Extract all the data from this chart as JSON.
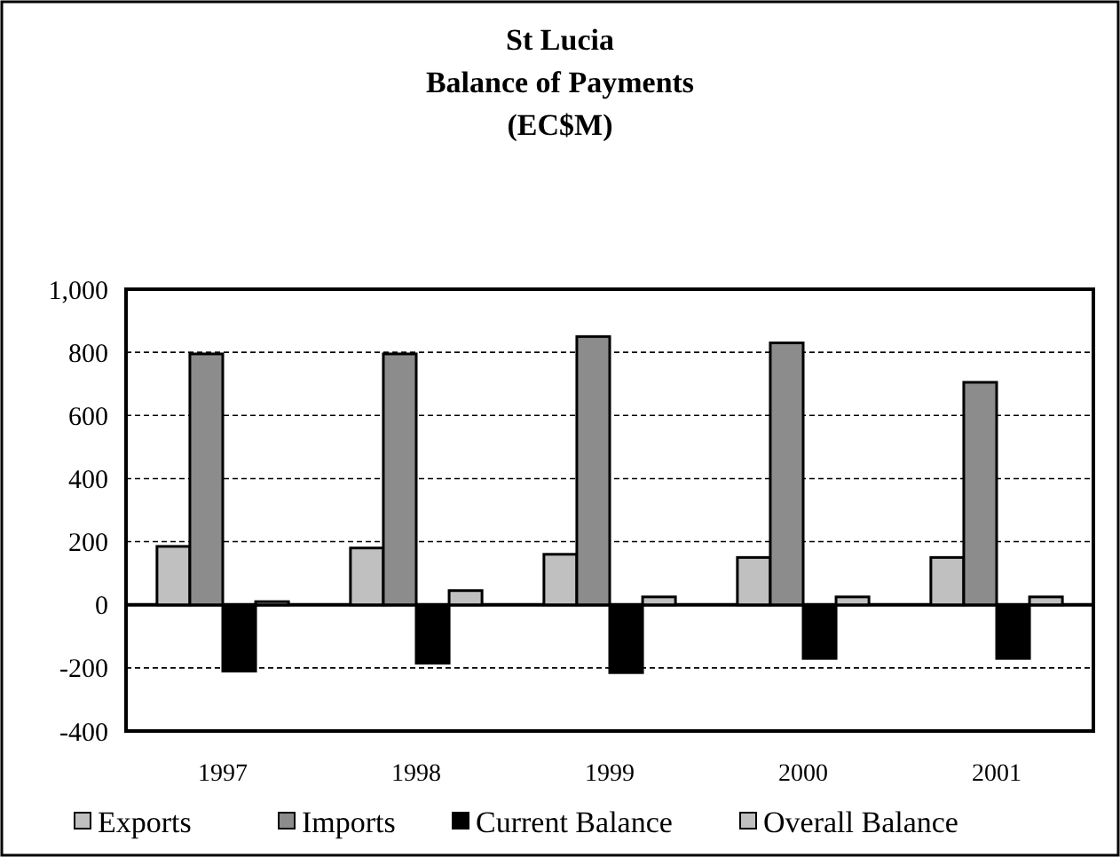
{
  "chart_data": {
    "type": "bar",
    "title": "St Lucia\nBalance of Payments\n(EC$M)",
    "categories": [
      "1997",
      "1998",
      "1999",
      "2000",
      "2001"
    ],
    "series": [
      {
        "name": "Exports",
        "color": "#c0c0c0",
        "values": [
          185,
          180,
          160,
          150,
          150
        ]
      },
      {
        "name": "Imports",
        "color": "#8c8c8c",
        "values": [
          795,
          795,
          850,
          830,
          705
        ]
      },
      {
        "name": "Current Balance",
        "color": "#000000",
        "values": [
          -210,
          -185,
          -215,
          -170,
          -170
        ]
      },
      {
        "name": "Overall Balance",
        "color": "#c0c0c0",
        "values": [
          10,
          45,
          25,
          25,
          25
        ]
      }
    ],
    "ylim": [
      -400,
      1000
    ],
    "yticks": [
      {
        "value": -400,
        "label": "-400"
      },
      {
        "value": -200,
        "label": "-200"
      },
      {
        "value": 0,
        "label": "0"
      },
      {
        "value": 200,
        "label": "200"
      },
      {
        "value": 400,
        "label": "400"
      },
      {
        "value": 600,
        "label": "600"
      },
      {
        "value": 800,
        "label": "800"
      },
      {
        "value": 1000,
        "label": "1,000"
      }
    ],
    "grid": "y",
    "legend": "bottom"
  }
}
